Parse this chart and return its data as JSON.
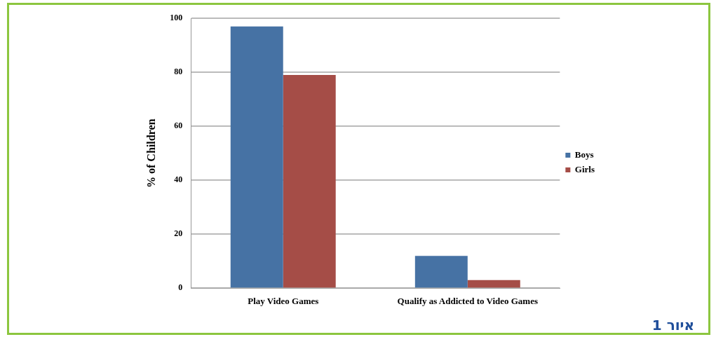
{
  "chart_data": {
    "type": "bar",
    "ylabel": "% of Children",
    "categories": [
      "Play Video Games",
      "Qualify as Addicted to Video Games"
    ],
    "series": [
      {
        "name": "Boys",
        "color": "#4672a4",
        "values": [
          97,
          12
        ]
      },
      {
        "name": "Girls",
        "color": "#a54d47",
        "values": [
          79,
          3
        ]
      }
    ],
    "ylim": [
      0,
      100
    ],
    "yticks": [
      0,
      20,
      40,
      60,
      80,
      100
    ],
    "grid": "y",
    "legend": "right",
    "annotations": [
      "איור 1"
    ]
  }
}
